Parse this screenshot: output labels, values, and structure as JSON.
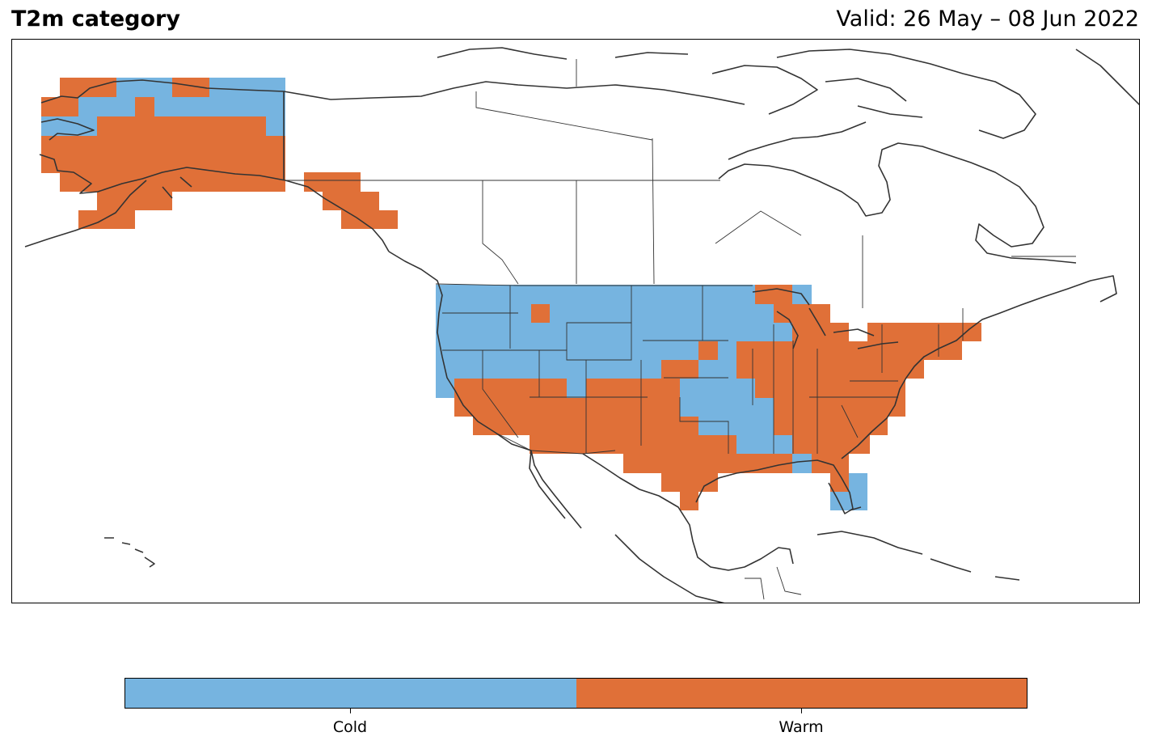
{
  "title": "T2m category",
  "valid": "Valid: 26 May – 08 Jun 2022",
  "colors": {
    "cold": "#76b4e0",
    "warm": "#e07038",
    "coast": "#333333"
  },
  "categories": [
    {
      "name": "Cold",
      "color": "#76b4e0"
    },
    {
      "name": "Warm",
      "color": "#e07038"
    }
  ],
  "map_regions": [
    {
      "region": "Alaska interior",
      "category": "Warm"
    },
    {
      "region": "Alaska north",
      "category": "Cold"
    },
    {
      "region": "Alaska panhandle",
      "category": "Warm"
    },
    {
      "region": "Western and northern US",
      "category": "Cold"
    },
    {
      "region": "Southwestern and southern US",
      "category": "Warm"
    },
    {
      "region": "Midwest and eastern US",
      "category": "Warm"
    },
    {
      "region": "South Florida",
      "category": "Cold"
    }
  ]
}
